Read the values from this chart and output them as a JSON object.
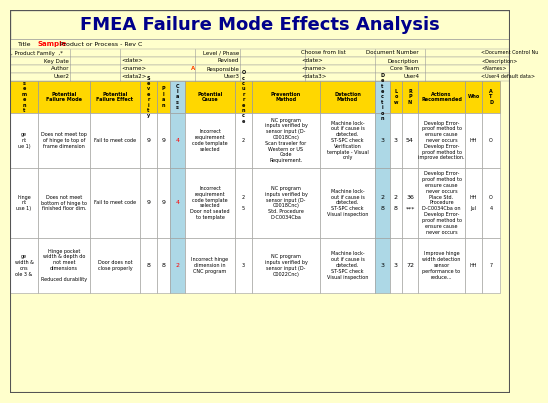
{
  "title": "FMEA Failure Mode Effects Analysis",
  "subtitle_label": "Title",
  "subtitle_value": "Sample",
  "subtitle_rest": " Product or Process - Rev C",
  "bg_color": "#FFFFCC",
  "header_bg": "#FFD700",
  "title_bg": "#FFFFCC",
  "border_color": "#999999",
  "meta_rows": [
    [
      ", Product Family  ,*",
      "",
      "",
      "",
      "Level / Phase",
      "Choose from list",
      "",
      "Document Number",
      "<Document Control Nu"
    ],
    [
      "",
      "Key Date",
      "<date>",
      "",
      "Revised",
      "<date>",
      "",
      "Description",
      "<Description>"
    ],
    [
      "",
      "Author",
      "<name>",
      "A",
      "Responsible",
      "<name>",
      "",
      "Core Team",
      "<Names>"
    ],
    [
      "",
      "User2",
      "<data2>",
      "",
      "User3",
      "<data3>",
      "",
      "User4",
      "<User4 default data>"
    ]
  ],
  "col_headers": [
    "s\ne\nm\ne\nn\nt",
    "Potential\nFailure Mode",
    "Potential\nFailure Effect",
    "S\ne\nv\ne\nr\ni\nt\ny",
    "P\nl\na\nn",
    "C\nl\na\ns\ns",
    "Potential\nCause",
    "O\nc\nc\nu\nr\nr\ne\nn\nc\ne",
    "Prevention\nMethod",
    "Detection\nMethod",
    "D\ne\nt\ne\nc\nt\ni\no\nn",
    "L\no\nw",
    "R\nP\nN",
    "Actions\nRecommended",
    "Who",
    "A\nT\nD"
  ],
  "data_rows": [
    {
      "col0": "ge\nnt\nue 1)",
      "col1": "Does not meet top\nof hinge to top of\nframe dimension",
      "col2": "Fail to meet code",
      "col3": "9",
      "col4": "9",
      "col5": "4",
      "col6": "Incorrect\nrequirement\ncode template\nselected",
      "col7": "2",
      "col8": "NC program\ninputs verified by\nsensor input (D-\nC0018Cnc)\nScan traveler for\nWestern or US\nCode\nRequirement.",
      "col9": "Machine lock-\nout if cause is\ndetected.\nST-SPC check\nVerification\ntemplate - Visual\nonly",
      "col10": "3",
      "col11": "3",
      "col12": "54",
      "col13": "Develop Error-\nproof method to\nensure cause\nnever occurs\nDevelop Error-\nproof method to\nimprove detection.",
      "col14": "HH",
      "col15": "O"
    },
    {
      "col0": "hinge\nnt\nuse 1)",
      "col1": "Does not meet\nbottom of hinge to\nfinished floor dim.",
      "col2": "Fail to meet code",
      "col3": "9",
      "col4": "9",
      "col5": "4",
      "col6": "Incorrect\nrequirement\ncode template\nselected\nDoor not seated\nto template",
      "col7": "2\n\n5",
      "col8": "NC program\ninputs verified by\nsensor input (D-\nC0018Cnc)\nStd. Procedure\nD-C0034Cba",
      "col9": "Machine lock-\nout if cause is\ndetected.\nST-SPC check\nVisual inspection",
      "col10": "2\n\n8",
      "col11": "2\n\n8",
      "col12": "36\n\n***",
      "col13": "Develop Error-\nproof method to\nensure cause\nnever occurs\nPlace Std.\nProcedure\nD-C0034Cba on\nDevelop Error-\nproof method to\nensure cause\nnever occurs",
      "col14": "HH\n\nJul",
      "col15": "O\n\n4"
    },
    {
      "col0": "ge\nwidth &\nons\nole 3 &",
      "col1": "Hinge pocket\nwidth & depth do\nnot meet\ndimensions\n\nReduced durability",
      "col2": "Door does not\nclose properly",
      "col3": "8",
      "col4": "8",
      "col5": "2",
      "col6": "Incorrect hinge\ndimension in\nCNC program",
      "col7": "3",
      "col8": "NC program\ninputs verified by\nsensor input (D-\nC0022Cnc)",
      "col9": "Machine lock-\nout if cause is\ndetected.\nST-SPC check\nVisual inspection",
      "col10": "3",
      "col11": "3",
      "col12": "72",
      "col13": "Improve hinge\nwidth detection\nsensor\nperformance to\nreduce...",
      "col14": "HH",
      "col15": "7"
    }
  ],
  "col5_highlight": "#ADD8E6",
  "col10_highlight": "#ADD8E6",
  "red_color": "#FF0000",
  "dark_blue": "#00008B",
  "text_color": "#000000",
  "orange_red": "#FF4500"
}
